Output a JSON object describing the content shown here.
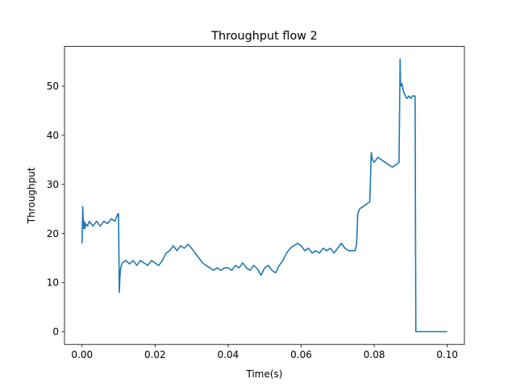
{
  "chart_data": {
    "type": "line",
    "title": "Throughput flow 2",
    "xlabel": "Time(s)",
    "ylabel": "Throughput",
    "xlim": [
      -0.0048,
      0.1047
    ],
    "ylim": [
      -2.6,
      58.1
    ],
    "x_ticks": [
      0.0,
      0.02,
      0.04,
      0.06,
      0.08,
      0.1
    ],
    "x_tick_labels": [
      "0.00",
      "0.02",
      "0.04",
      "0.06",
      "0.08",
      "0.10"
    ],
    "y_ticks": [
      0,
      10,
      20,
      30,
      40,
      50
    ],
    "y_tick_labels": [
      "0",
      "10",
      "20",
      "30",
      "40",
      "50"
    ],
    "grid": false,
    "legend": "none",
    "series": [
      {
        "color": "#1f77b4",
        "x": [
          0.0,
          0.0002,
          0.0004,
          0.0006,
          0.0008,
          0.001,
          0.0015,
          0.002,
          0.003,
          0.004,
          0.005,
          0.006,
          0.007,
          0.008,
          0.009,
          0.0098,
          0.0099,
          0.01,
          0.0102,
          0.0104,
          0.0106,
          0.011,
          0.012,
          0.013,
          0.014,
          0.015,
          0.016,
          0.017,
          0.018,
          0.019,
          0.02,
          0.021,
          0.022,
          0.023,
          0.024,
          0.025,
          0.026,
          0.027,
          0.028,
          0.029,
          0.03,
          0.031,
          0.032,
          0.033,
          0.034,
          0.035,
          0.036,
          0.037,
          0.038,
          0.039,
          0.04,
          0.041,
          0.042,
          0.043,
          0.044,
          0.045,
          0.046,
          0.047,
          0.048,
          0.049,
          0.05,
          0.051,
          0.052,
          0.053,
          0.054,
          0.055,
          0.056,
          0.057,
          0.058,
          0.059,
          0.06,
          0.061,
          0.062,
          0.063,
          0.064,
          0.065,
          0.066,
          0.067,
          0.068,
          0.069,
          0.07,
          0.071,
          0.072,
          0.073,
          0.074,
          0.0748,
          0.0752,
          0.0755,
          0.076,
          0.077,
          0.078,
          0.0788,
          0.0792,
          0.0795,
          0.08,
          0.081,
          0.082,
          0.083,
          0.084,
          0.085,
          0.086,
          0.0868,
          0.0871,
          0.0872,
          0.0874,
          0.0876,
          0.088,
          0.0885,
          0.089,
          0.0895,
          0.09,
          0.0905,
          0.091,
          0.0912,
          0.0914,
          0.092,
          0.095,
          0.098,
          0.1
        ],
        "values": [
          18.0,
          25.5,
          21.0,
          22.5,
          21.0,
          22.0,
          21.5,
          22.5,
          21.5,
          22.5,
          21.5,
          22.5,
          22.0,
          23.0,
          22.5,
          24.0,
          23.5,
          24.0,
          8.0,
          11.5,
          13.0,
          14.0,
          14.5,
          13.8,
          14.5,
          13.5,
          14.5,
          14.0,
          13.5,
          14.5,
          14.0,
          13.5,
          14.5,
          16.0,
          16.5,
          17.5,
          16.5,
          17.5,
          17.0,
          17.8,
          17.0,
          16.0,
          15.0,
          14.0,
          13.5,
          13.0,
          12.5,
          13.0,
          12.5,
          13.0,
          13.0,
          12.5,
          13.5,
          13.0,
          14.0,
          13.0,
          12.5,
          13.5,
          12.8,
          11.5,
          13.0,
          13.5,
          12.5,
          12.0,
          13.5,
          14.5,
          16.0,
          17.0,
          17.5,
          18.0,
          17.5,
          16.5,
          17.0,
          16.0,
          16.5,
          16.0,
          17.0,
          16.5,
          17.0,
          16.0,
          17.0,
          18.0,
          17.0,
          16.5,
          16.5,
          16.5,
          18.0,
          24.0,
          25.0,
          25.5,
          26.0,
          26.5,
          36.5,
          35.0,
          34.5,
          35.5,
          35.0,
          34.5,
          34.0,
          33.5,
          34.0,
          34.5,
          55.5,
          51.0,
          50.0,
          50.5,
          49.0,
          48.0,
          47.5,
          48.0,
          47.5,
          48.0,
          48.0,
          48.0,
          0.0,
          0.0,
          0.0,
          0.0,
          0.0
        ]
      }
    ]
  }
}
